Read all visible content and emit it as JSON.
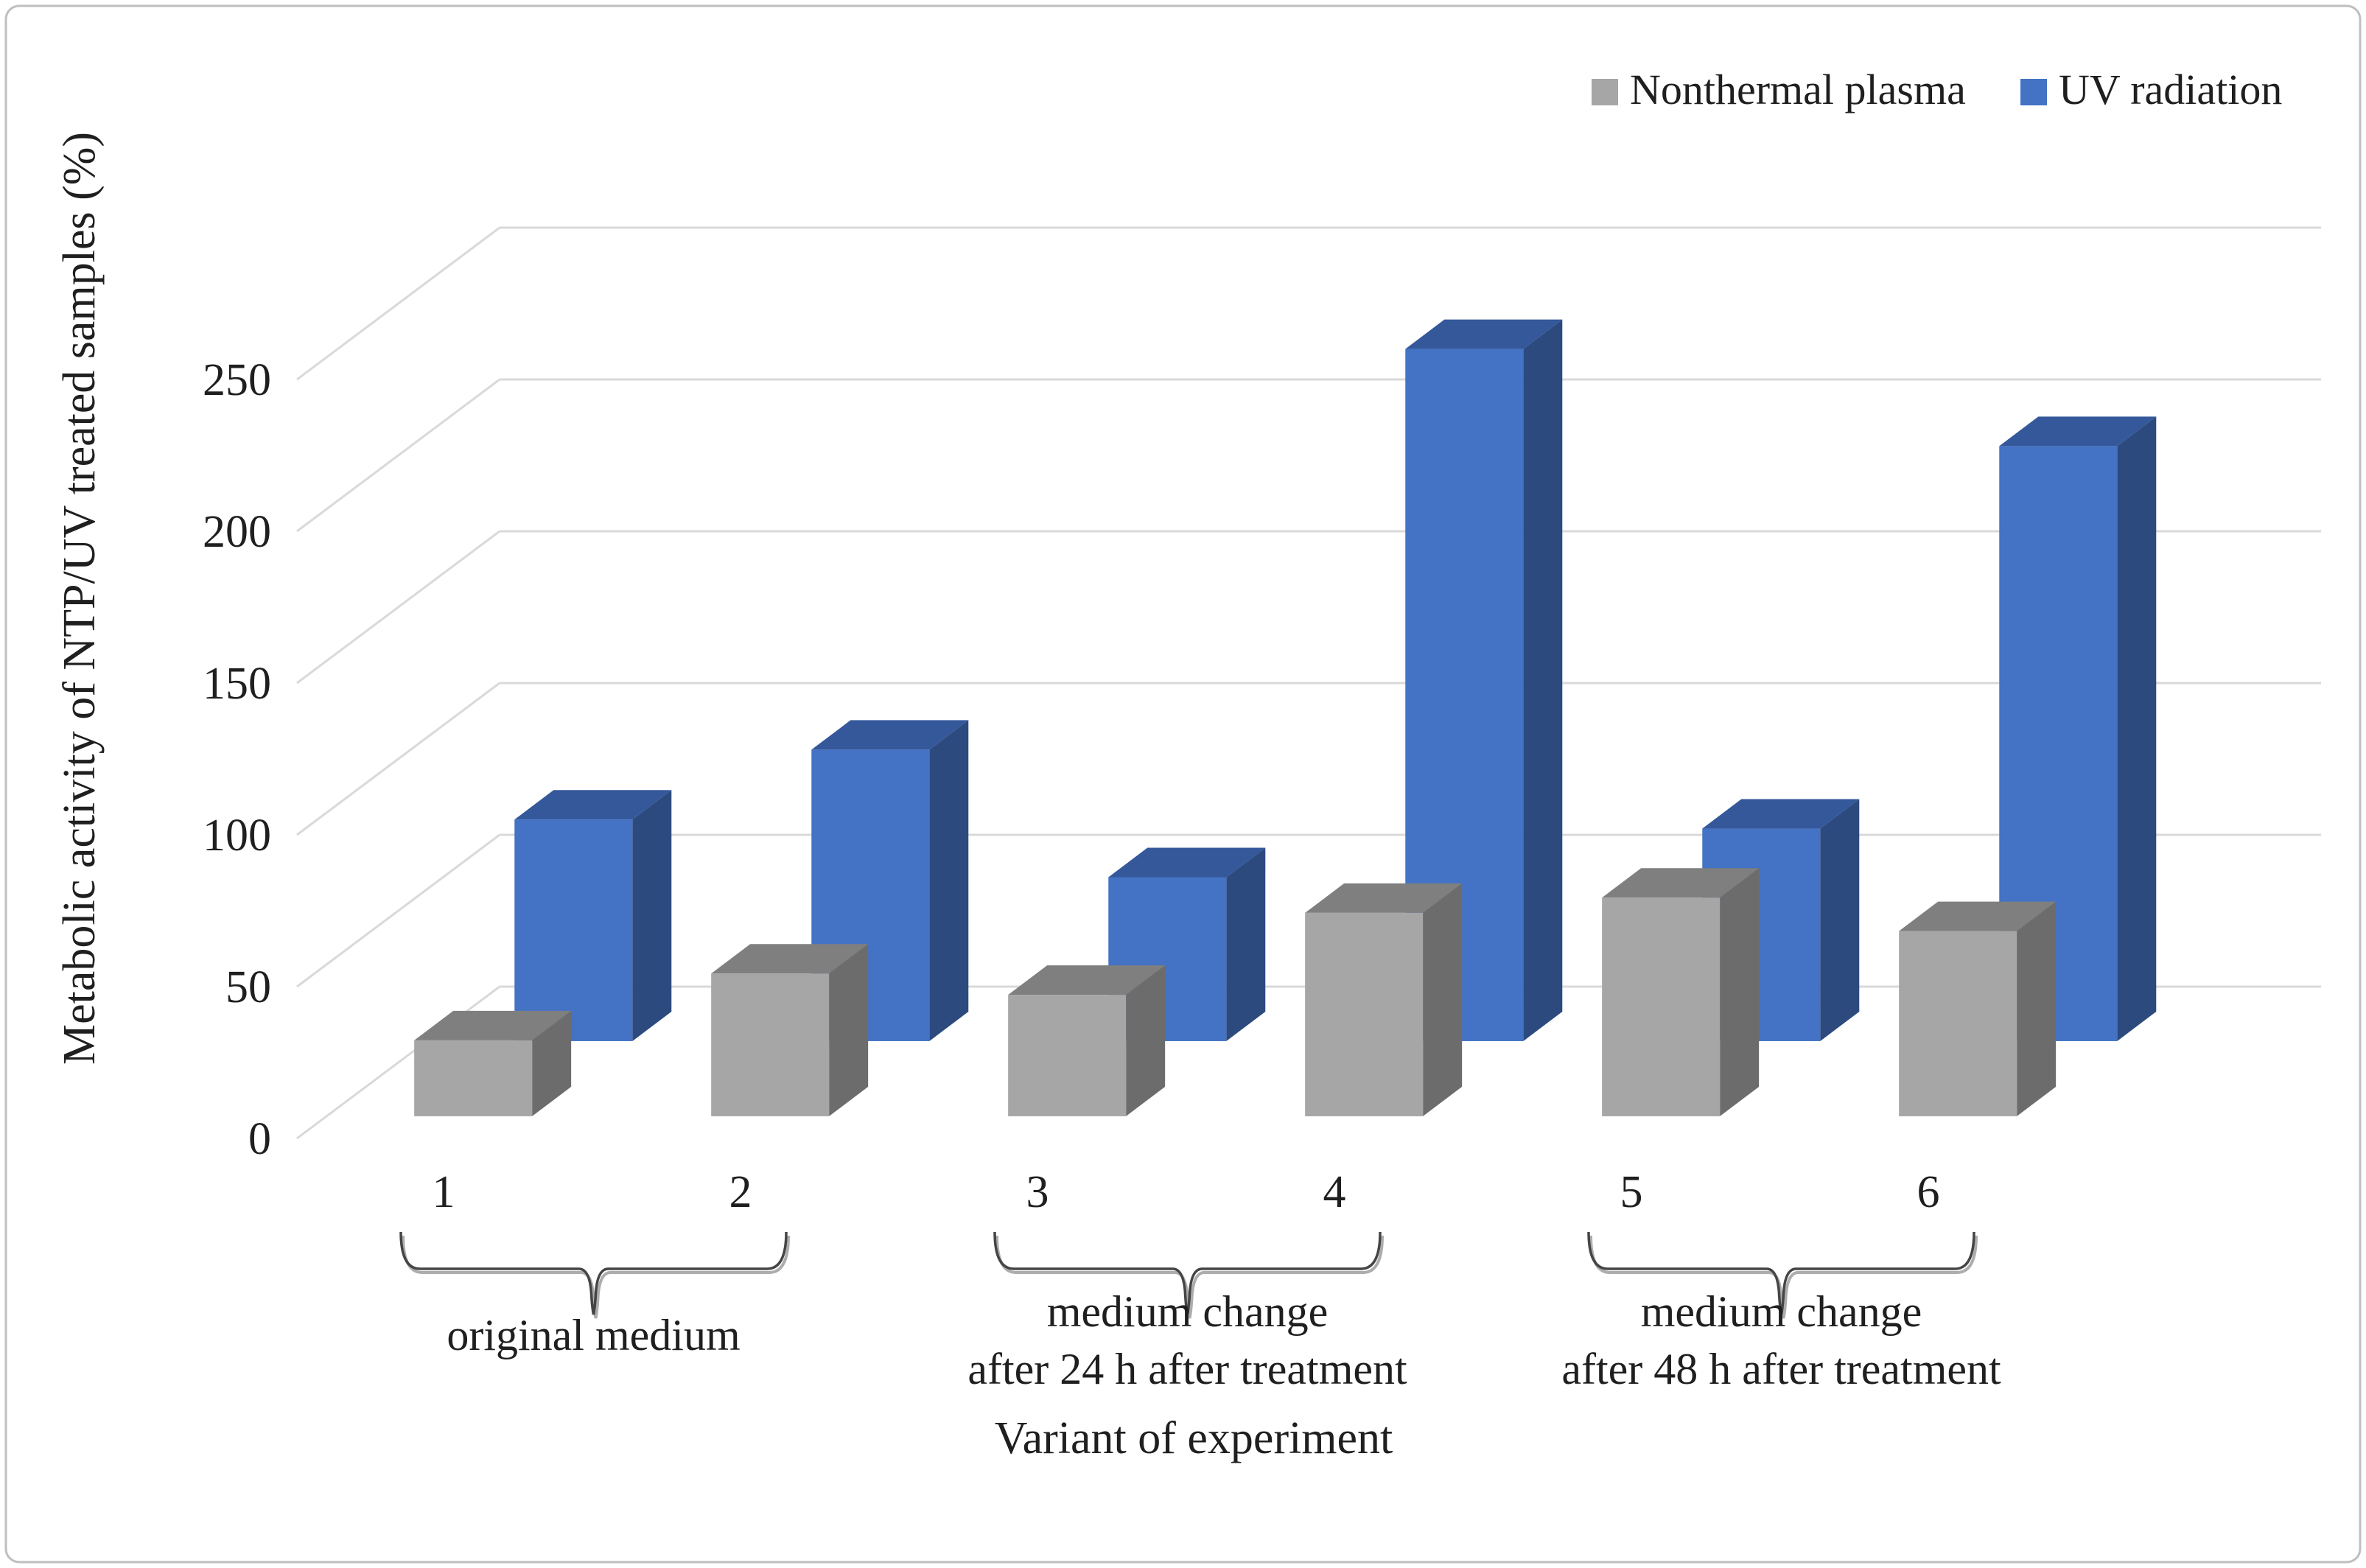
{
  "chart_data": {
    "type": "bar",
    "projection": "3d",
    "title": "",
    "xlabel": "Variant of experiment",
    "ylabel": "Metabolic activity of NTP/UV treated samples (%)",
    "categories": [
      "1",
      "2",
      "3",
      "4",
      "5",
      "6"
    ],
    "series": [
      {
        "name": "Nonthermal plasma",
        "values": [
          25,
          47,
          40,
          67,
          72,
          61
        ],
        "colors": {
          "front": "#A6A6A6",
          "top": "#7F7F7F",
          "side": "#6C6C6C"
        }
      },
      {
        "name": "UV radiation",
        "values": [
          73,
          96,
          54,
          228,
          70,
          196
        ],
        "colors": {
          "front": "#4472C4",
          "top": "#34589A",
          "side": "#2C4A7E"
        }
      }
    ],
    "y_axis": {
      "min": 0,
      "max": 250,
      "ticks": [
        0,
        50,
        100,
        150,
        200,
        250
      ],
      "grid": true
    },
    "legend": {
      "position": "top-right",
      "entries": [
        "Nonthermal plasma",
        "UV radiation"
      ]
    },
    "group_brackets": [
      {
        "from": "1",
        "to": "2",
        "label_lines": [
          "original medium"
        ]
      },
      {
        "from": "3",
        "to": "4",
        "label_lines": [
          "medium change",
          "after 24 h after treatment"
        ]
      },
      {
        "from": "5",
        "to": "6",
        "label_lines": [
          "medium change",
          "after 48 h after treatment"
        ]
      }
    ]
  },
  "colors": {
    "background": "#FFFFFF",
    "border": "#BFBFBF",
    "gridline": "#D9D9D9",
    "text": "#1F1F1F",
    "brace": "#454545",
    "brace_shadow": "#ADADAD"
  }
}
